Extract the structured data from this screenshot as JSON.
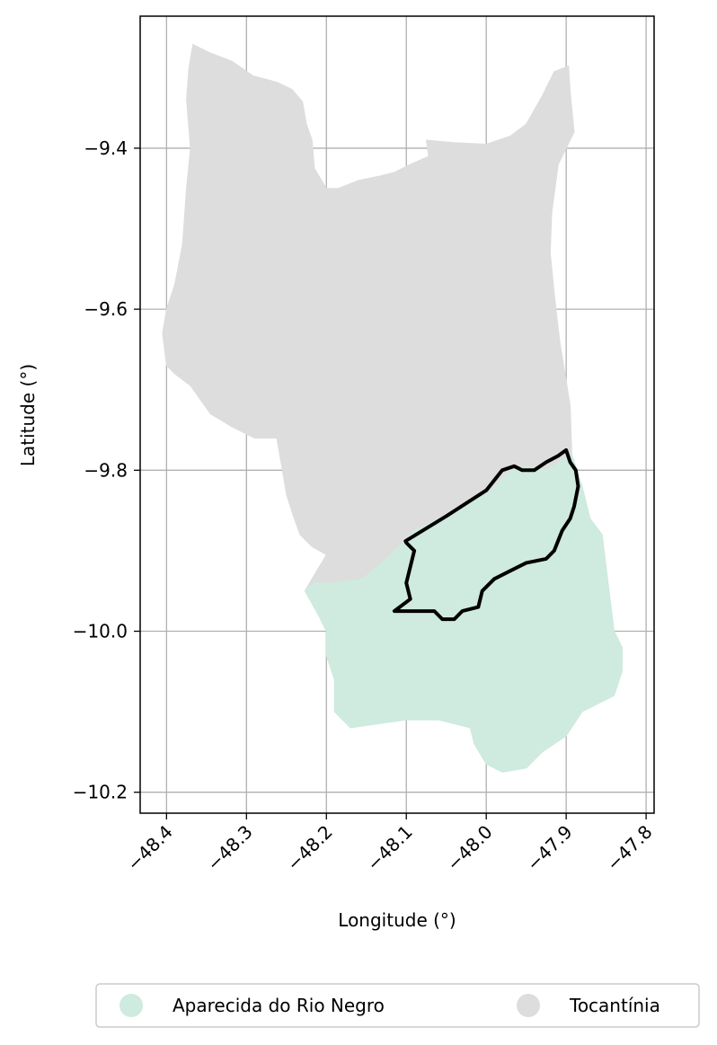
{
  "chart_data": {
    "type": "map",
    "xlabel": "Longitude (°)",
    "ylabel": "Latitude (°)",
    "xlim": [
      -48.433,
      -47.79
    ],
    "ylim": [
      -10.226,
      -9.236
    ],
    "x_ticks": [
      -48.4,
      -48.3,
      -48.2,
      -48.1,
      -48.0,
      -47.9,
      -47.8
    ],
    "x_tick_labels": [
      "−48.4",
      "−48.3",
      "−48.2",
      "−48.1",
      "−48.0",
      "−47.9",
      "−47.8"
    ],
    "y_ticks": [
      -9.4,
      -9.6,
      -9.8,
      -10.0,
      -10.2
    ],
    "y_tick_labels": [
      "−9.4",
      "−9.6",
      "−9.8",
      "−10.0",
      "−10.2"
    ],
    "grid": true,
    "legend_position": "bottom",
    "regions": [
      {
        "name": "Tocantínia",
        "color": "#dddddd",
        "outline": [
          [
            -48.367,
            -9.271
          ],
          [
            -48.347,
            -9.281
          ],
          [
            -48.318,
            -9.292
          ],
          [
            -48.292,
            -9.31
          ],
          [
            -48.262,
            -9.318
          ],
          [
            -48.243,
            -9.327
          ],
          [
            -48.23,
            -9.342
          ],
          [
            -48.225,
            -9.37
          ],
          [
            -48.218,
            -9.39
          ],
          [
            -48.215,
            -9.425
          ],
          [
            -48.2,
            -9.45
          ],
          [
            -48.185,
            -9.45
          ],
          [
            -48.16,
            -9.44
          ],
          [
            -48.135,
            -9.435
          ],
          [
            -48.115,
            -9.43
          ],
          [
            -48.095,
            -9.42
          ],
          [
            -48.072,
            -9.41
          ],
          [
            -48.075,
            -9.39
          ],
          [
            -48.04,
            -9.393
          ],
          [
            -48.0,
            -9.395
          ],
          [
            -47.97,
            -9.385
          ],
          [
            -47.95,
            -9.37
          ],
          [
            -47.93,
            -9.335
          ],
          [
            -47.915,
            -9.305
          ],
          [
            -47.897,
            -9.298
          ],
          [
            -47.895,
            -9.33
          ],
          [
            -47.89,
            -9.38
          ],
          [
            -47.91,
            -9.42
          ],
          [
            -47.918,
            -9.48
          ],
          [
            -47.92,
            -9.53
          ],
          [
            -47.915,
            -9.58
          ],
          [
            -47.908,
            -9.64
          ],
          [
            -47.895,
            -9.72
          ],
          [
            -47.893,
            -9.78
          ],
          [
            -47.91,
            -9.79
          ],
          [
            -47.925,
            -9.8
          ],
          [
            -47.95,
            -9.795
          ],
          [
            -47.97,
            -9.8
          ],
          [
            -48.0,
            -9.83
          ],
          [
            -48.04,
            -9.85
          ],
          [
            -48.09,
            -9.875
          ],
          [
            -48.125,
            -9.91
          ],
          [
            -48.155,
            -9.935
          ],
          [
            -48.19,
            -9.94
          ],
          [
            -48.215,
            -9.94
          ],
          [
            -48.227,
            -9.95
          ],
          [
            -48.215,
            -9.93
          ],
          [
            -48.2,
            -9.905
          ],
          [
            -48.218,
            -9.895
          ],
          [
            -48.233,
            -9.88
          ],
          [
            -48.242,
            -9.855
          ],
          [
            -48.25,
            -9.83
          ],
          [
            -48.255,
            -9.8
          ],
          [
            -48.262,
            -9.76
          ],
          [
            -48.29,
            -9.76
          ],
          [
            -48.32,
            -9.745
          ],
          [
            -48.345,
            -9.73
          ],
          [
            -48.37,
            -9.695
          ],
          [
            -48.39,
            -9.68
          ],
          [
            -48.4,
            -9.67
          ],
          [
            -48.405,
            -9.63
          ],
          [
            -48.4,
            -9.6
          ],
          [
            -48.39,
            -9.57
          ],
          [
            -48.38,
            -9.52
          ],
          [
            -48.375,
            -9.45
          ],
          [
            -48.37,
            -9.4
          ],
          [
            -48.375,
            -9.34
          ],
          [
            -48.372,
            -9.3
          ]
        ]
      },
      {
        "name": "Aparecida do Rio Negro",
        "color": "#cfeade",
        "outline": [
          [
            -48.227,
            -9.95
          ],
          [
            -48.215,
            -9.94
          ],
          [
            -48.19,
            -9.94
          ],
          [
            -48.155,
            -9.935
          ],
          [
            -48.125,
            -9.91
          ],
          [
            -48.09,
            -9.875
          ],
          [
            -48.04,
            -9.85
          ],
          [
            -48.0,
            -9.83
          ],
          [
            -47.97,
            -9.8
          ],
          [
            -47.95,
            -9.795
          ],
          [
            -47.925,
            -9.8
          ],
          [
            -47.91,
            -9.79
          ],
          [
            -47.893,
            -9.78
          ],
          [
            -47.88,
            -9.82
          ],
          [
            -47.87,
            -9.86
          ],
          [
            -47.855,
            -9.88
          ],
          [
            -47.85,
            -9.92
          ],
          [
            -47.845,
            -9.96
          ],
          [
            -47.84,
            -10.0
          ],
          [
            -47.83,
            -10.02
          ],
          [
            -47.83,
            -10.05
          ],
          [
            -47.84,
            -10.08
          ],
          [
            -47.86,
            -10.09
          ],
          [
            -47.88,
            -10.1
          ],
          [
            -47.9,
            -10.13
          ],
          [
            -47.93,
            -10.15
          ],
          [
            -47.95,
            -10.17
          ],
          [
            -47.98,
            -10.175
          ],
          [
            -48.0,
            -10.165
          ],
          [
            -48.015,
            -10.14
          ],
          [
            -48.02,
            -10.12
          ],
          [
            -48.06,
            -10.11
          ],
          [
            -48.1,
            -10.11
          ],
          [
            -48.135,
            -10.115
          ],
          [
            -48.17,
            -10.12
          ],
          [
            -48.19,
            -10.1
          ],
          [
            -48.19,
            -10.06
          ],
          [
            -48.2,
            -10.03
          ],
          [
            -48.2,
            -10.0
          ],
          [
            -48.21,
            -9.98
          ]
        ]
      }
    ],
    "highlight_outline": [
      [
        -48.1,
        -9.89
      ],
      [
        -48.09,
        -9.9
      ],
      [
        -48.1,
        -9.94
      ],
      [
        -48.095,
        -9.96
      ],
      [
        -48.115,
        -9.975
      ],
      [
        -48.105,
        -9.975
      ],
      [
        -48.08,
        -9.975
      ],
      [
        -48.065,
        -9.975
      ],
      [
        -48.055,
        -9.985
      ],
      [
        -48.04,
        -9.985
      ],
      [
        -48.03,
        -9.975
      ],
      [
        -48.01,
        -9.97
      ],
      [
        -48.005,
        -9.95
      ],
      [
        -47.99,
        -9.935
      ],
      [
        -47.97,
        -9.925
      ],
      [
        -47.95,
        -9.915
      ],
      [
        -47.925,
        -9.91
      ],
      [
        -47.915,
        -9.9
      ],
      [
        -47.905,
        -9.875
      ],
      [
        -47.895,
        -9.86
      ],
      [
        -47.89,
        -9.845
      ],
      [
        -47.885,
        -9.82
      ],
      [
        -47.888,
        -9.8
      ],
      [
        -47.895,
        -9.79
      ],
      [
        -47.9,
        -9.775
      ],
      [
        -47.91,
        -9.782
      ],
      [
        -47.925,
        -9.79
      ],
      [
        -47.94,
        -9.8
      ],
      [
        -47.955,
        -9.8
      ],
      [
        -47.965,
        -9.795
      ],
      [
        -47.98,
        -9.8
      ],
      [
        -48.0,
        -9.825
      ],
      [
        -48.05,
        -9.857
      ],
      [
        -48.101,
        -9.888
      ]
    ],
    "highlight_color": "#000000",
    "legend": [
      {
        "label": "Aparecida do Rio Negro",
        "color": "#cfeade"
      },
      {
        "label": "Tocantínia",
        "color": "#dddddd"
      }
    ]
  }
}
